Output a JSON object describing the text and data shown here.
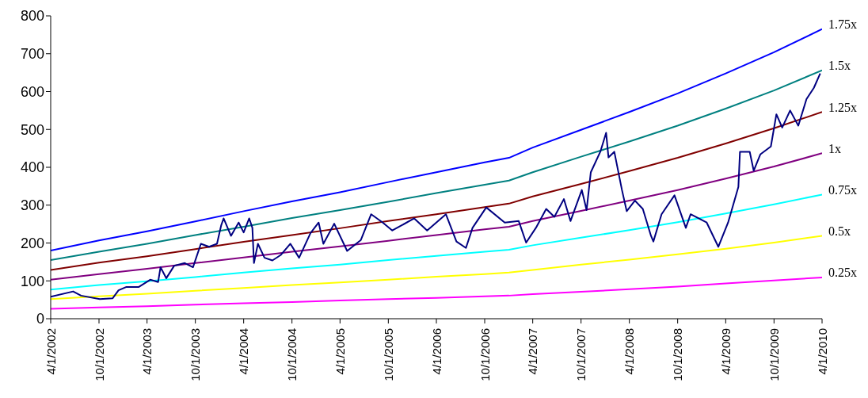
{
  "chart_data": {
    "type": "line",
    "xlim": [
      "2002-04-01",
      "2010-04-01"
    ],
    "ylim": [
      0,
      800
    ],
    "yticks": [
      0,
      100,
      200,
      300,
      400,
      500,
      600,
      700,
      800
    ],
    "xticks": [
      {
        "value": "2002-04-01",
        "label": "4/1/2002"
      },
      {
        "value": "2002-10-01",
        "label": "10/1/2002"
      },
      {
        "value": "2003-04-01",
        "label": "4/1/2003"
      },
      {
        "value": "2003-10-01",
        "label": "10/1/2003"
      },
      {
        "value": "2004-04-01",
        "label": "4/1/2004"
      },
      {
        "value": "2004-10-01",
        "label": "10/1/2004"
      },
      {
        "value": "2005-04-01",
        "label": "4/1/2005"
      },
      {
        "value": "2005-10-01",
        "label": "10/1/2005"
      },
      {
        "value": "2006-04-01",
        "label": "4/1/2006"
      },
      {
        "value": "2006-10-01",
        "label": "10/1/2006"
      },
      {
        "value": "2007-04-01",
        "label": "4/1/2007"
      },
      {
        "value": "2007-10-01",
        "label": "10/1/2007"
      },
      {
        "value": "2008-04-01",
        "label": "4/1/2008"
      },
      {
        "value": "2008-10-01",
        "label": "10/1/2008"
      },
      {
        "value": "2009-04-01",
        "label": "4/1/2009"
      },
      {
        "value": "2009-10-01",
        "label": "10/1/2009"
      },
      {
        "value": "2010-04-01",
        "label": "4/1/2010"
      }
    ],
    "x": [
      "2002-04-01",
      "2002-10-01",
      "2003-04-01",
      "2003-10-01",
      "2004-04-01",
      "2004-10-01",
      "2005-04-01",
      "2005-10-01",
      "2006-04-01",
      "2006-10-01",
      "2007-01-01",
      "2007-04-01",
      "2007-10-01",
      "2008-04-01",
      "2008-10-01",
      "2009-04-01",
      "2009-10-01",
      "2010-04-01"
    ],
    "grid": false,
    "marker": "none",
    "line_style": "solid",
    "series": [
      {
        "name": "1.75x",
        "color": "#0000ff",
        "values": [
          180,
          207,
          231,
          257,
          284,
          310,
          334,
          361,
          387,
          413,
          425,
          452,
          499,
          546,
          595,
          648,
          704,
          765
        ]
      },
      {
        "name": "1.5x",
        "color": "#008080",
        "values": [
          155,
          177,
          198,
          221,
          243,
          266,
          287,
          309,
          332,
          354,
          365,
          387,
          428,
          468,
          510,
          555,
          603,
          656
        ]
      },
      {
        "name": "1.25x",
        "color": "#800000",
        "values": [
          129,
          148,
          165,
          184,
          203,
          221,
          239,
          258,
          276,
          295,
          304,
          323,
          356,
          390,
          425,
          463,
          503,
          546
        ]
      },
      {
        "name": "1x",
        "color": "#800080",
        "values": [
          103,
          118,
          132,
          147,
          162,
          177,
          191,
          206,
          221,
          236,
          243,
          258,
          285,
          312,
          340,
          370,
          402,
          437
        ]
      },
      {
        "name": "0.75x",
        "color": "#00ffff",
        "values": [
          77,
          89,
          99,
          110,
          122,
          133,
          143,
          155,
          166,
          177,
          182,
          194,
          214,
          234,
          255,
          278,
          302,
          328
        ]
      },
      {
        "name": "0.5x",
        "color": "#ffff00",
        "values": [
          52,
          59,
          66,
          74,
          81,
          89,
          96,
          103,
          111,
          118,
          122,
          129,
          143,
          156,
          170,
          185,
          201,
          219
        ]
      },
      {
        "name": "0.25x",
        "color": "#ff00ff",
        "values": [
          26,
          30,
          33,
          37,
          41,
          44,
          48,
          52,
          55,
          59,
          61,
          65,
          71,
          78,
          85,
          93,
          101,
          109
        ]
      },
      {
        "color": "#000080",
        "x": [
          "2002-04-01",
          "2002-06-25",
          "2002-07-25",
          "2002-10-04",
          "2002-11-22",
          "2002-12-14",
          "2003-01-13",
          "2003-03-01",
          "2003-04-13",
          "2003-05-13",
          "2003-05-22",
          "2003-06-13",
          "2003-07-13",
          "2003-08-22",
          "2003-09-22",
          "2003-10-22",
          "2003-11-22",
          "2003-12-22",
          "2004-01-07",
          "2004-01-16",
          "2004-02-13",
          "2004-03-13",
          "2004-04-01",
          "2004-04-22",
          "2004-05-04",
          "2004-05-10",
          "2004-05-25",
          "2004-06-19",
          "2004-07-19",
          "2004-08-19",
          "2004-09-25",
          "2004-10-28",
          "2004-12-10",
          "2005-01-10",
          "2005-01-28",
          "2005-03-10",
          "2005-04-28",
          "2005-06-19",
          "2005-07-28",
          "2005-09-10",
          "2005-10-16",
          "2006-01-07",
          "2006-02-25",
          "2006-05-07",
          "2006-06-16",
          "2006-07-22",
          "2006-08-16",
          "2006-10-07",
          "2006-12-16",
          "2007-02-07",
          "2007-03-07",
          "2007-04-13",
          "2007-05-22",
          "2007-06-22",
          "2007-07-28",
          "2007-08-22",
          "2007-10-04",
          "2007-10-22",
          "2007-11-07",
          "2007-12-13",
          "2008-01-04",
          "2008-01-13",
          "2008-02-04",
          "2008-03-04",
          "2008-03-22",
          "2008-04-22",
          "2008-05-22",
          "2008-06-22",
          "2008-07-01",
          "2008-08-01",
          "2008-09-19",
          "2008-11-01",
          "2008-11-19",
          "2009-01-19",
          "2009-03-04",
          "2009-04-10",
          "2009-05-19",
          "2009-05-25",
          "2009-07-01",
          "2009-07-16",
          "2009-08-10",
          "2009-09-19",
          "2009-10-10",
          "2009-11-01",
          "2009-12-01",
          "2010-01-01",
          "2010-02-01",
          "2010-03-01",
          "2010-03-25"
        ],
        "values": [
          58,
          72,
          61,
          52,
          54,
          75,
          84,
          84,
          103,
          97,
          136,
          107,
          140,
          147,
          136,
          198,
          190,
          198,
          247,
          265,
          219,
          254,
          228,
          265,
          240,
          147,
          198,
          161,
          154,
          168,
          198,
          161,
          226,
          254,
          198,
          251,
          179,
          208,
          276,
          254,
          233,
          265,
          233,
          276,
          204,
          187,
          240,
          294,
          254,
          258,
          201,
          240,
          290,
          269,
          316,
          258,
          340,
          287,
          387,
          441,
          491,
          426,
          441,
          340,
          284,
          312,
          290,
          219,
          204,
          276,
          326,
          240,
          276,
          254,
          190,
          254,
          348,
          441,
          441,
          391,
          434,
          455,
          540,
          505,
          550,
          510,
          580,
          610,
          648
        ]
      }
    ]
  }
}
